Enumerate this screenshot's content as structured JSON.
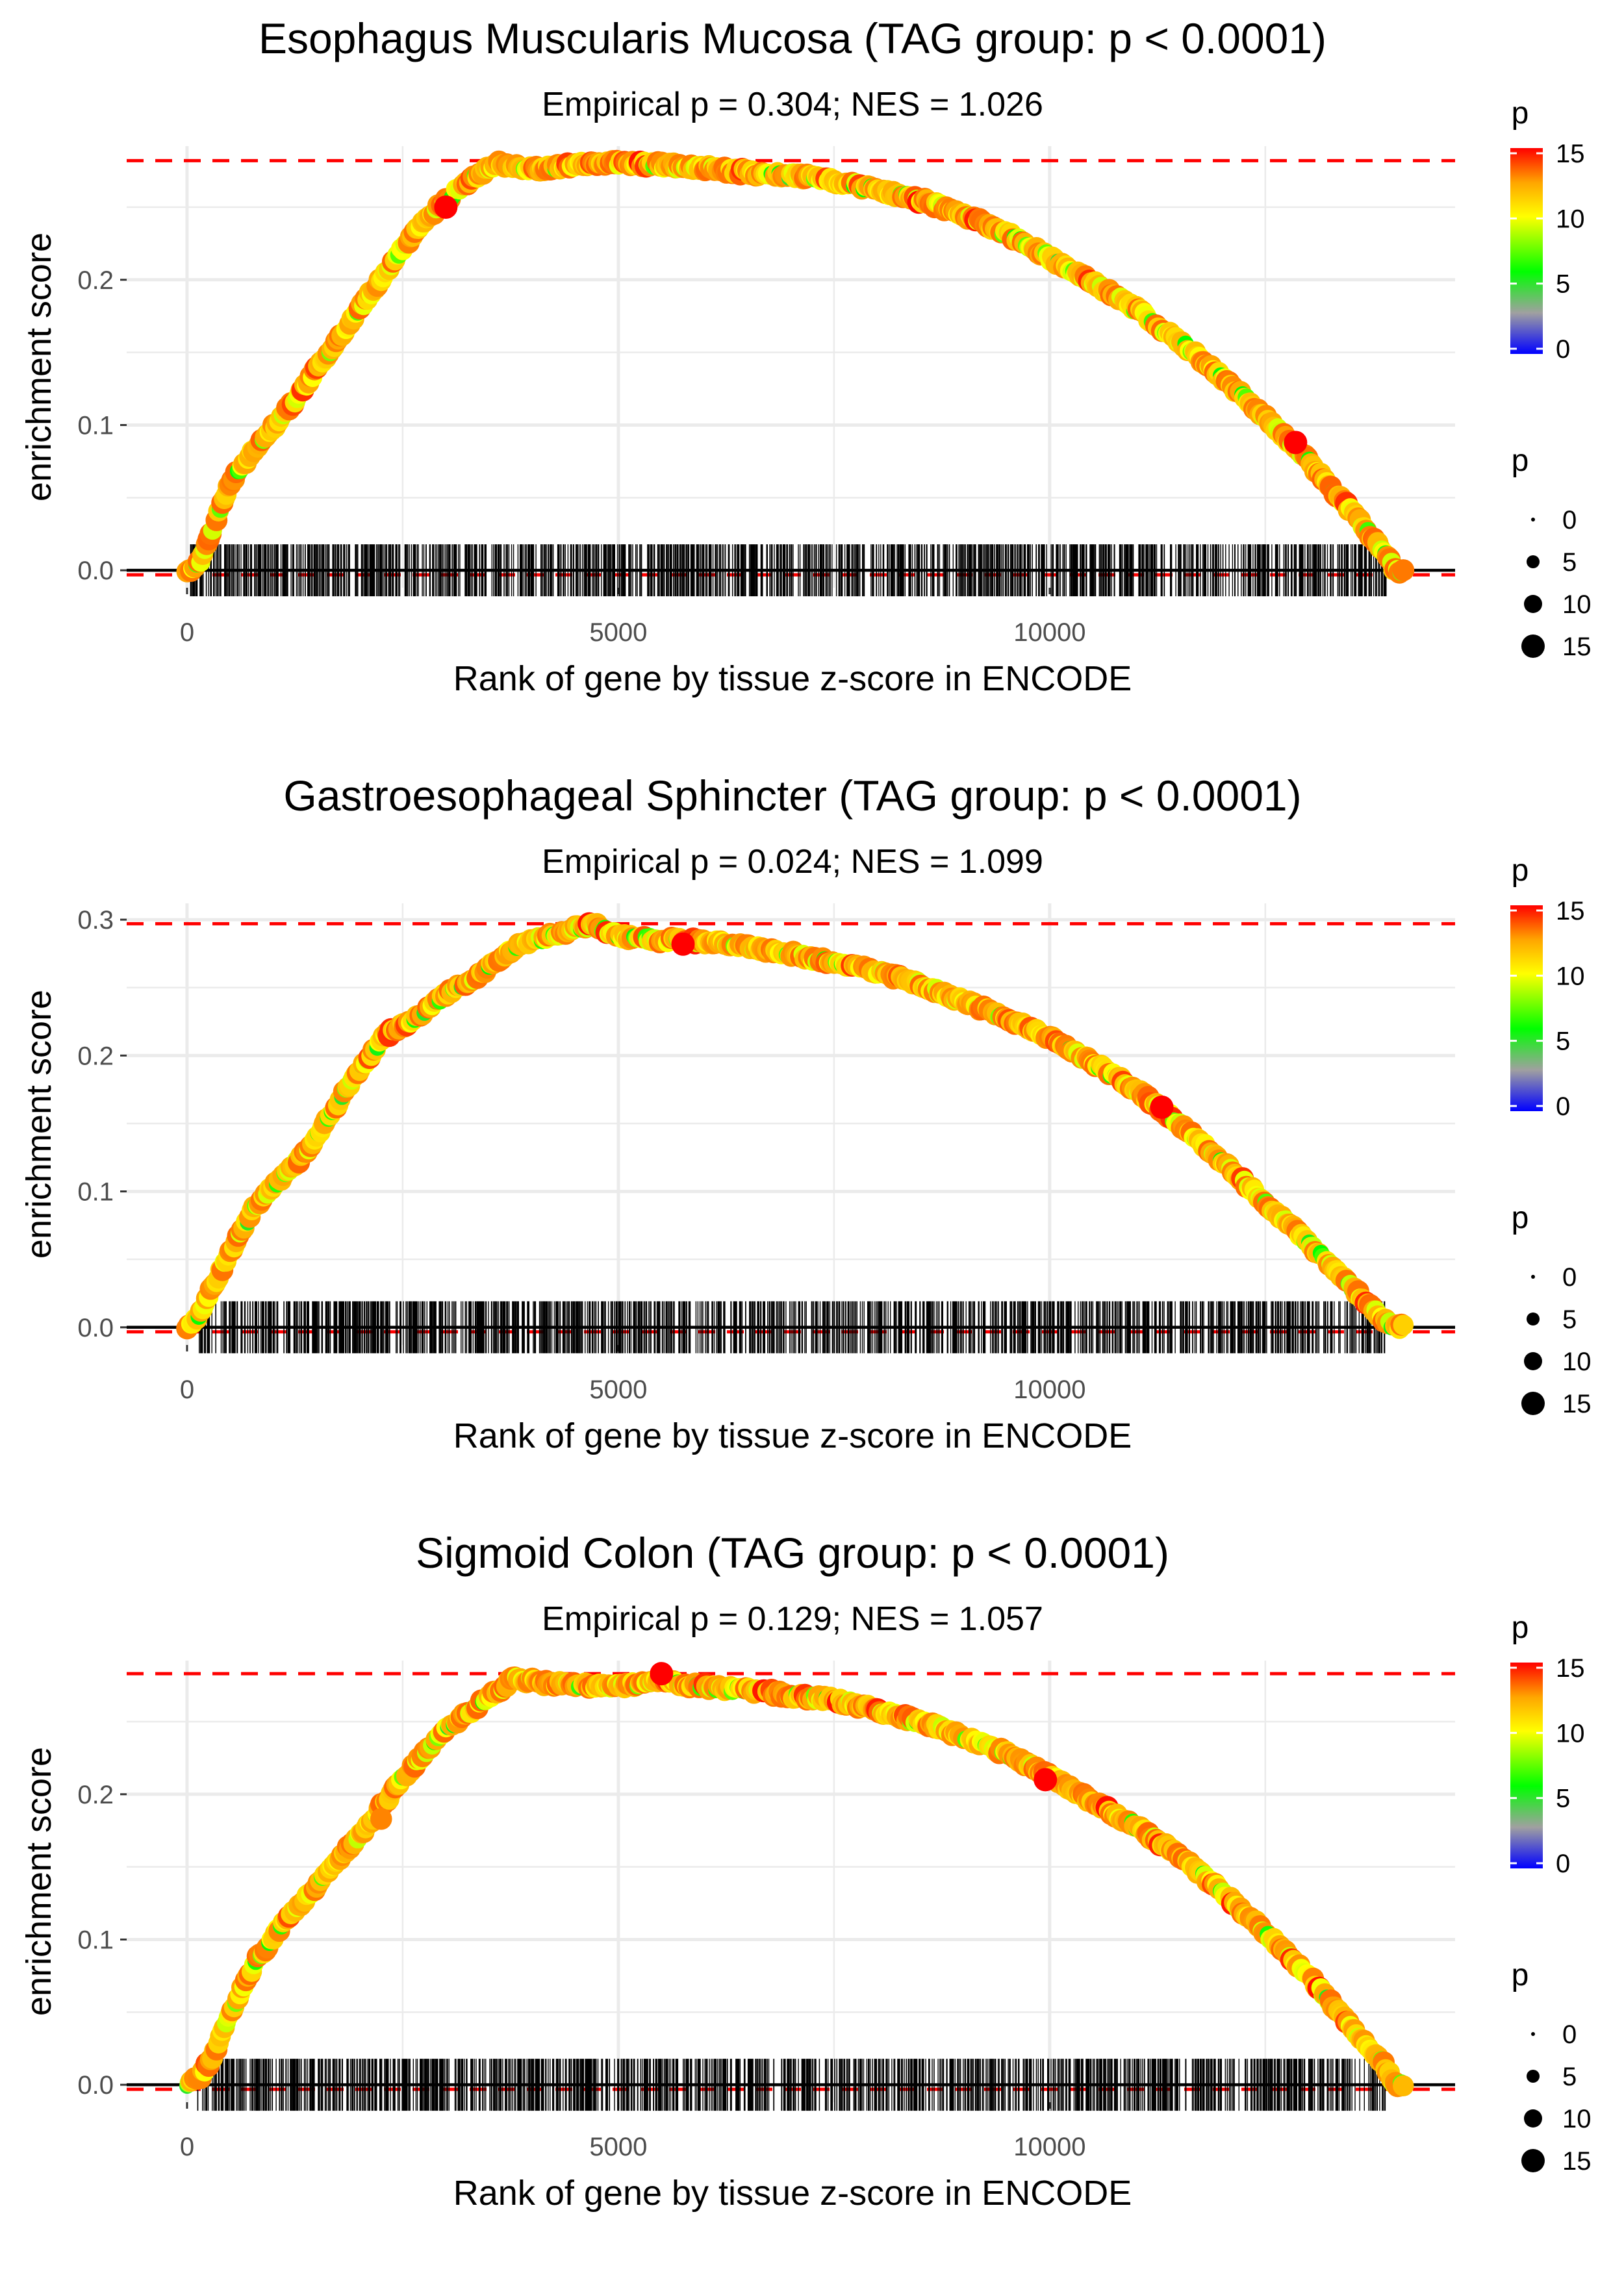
{
  "chart_data": [
    {
      "type": "line",
      "title": "Esophagus Muscularis Mucosa (TAG group: p < 0.0001)",
      "subtitle": "Empirical p = 0.304; NES = 1.026",
      "xlabel": "Rank of gene by tissue z-score in ENCODE",
      "ylabel": "enrichment score",
      "xlim": [
        -700,
        14700
      ],
      "ylim": [
        -0.012,
        0.292
      ],
      "x_ticks": [
        0,
        5000,
        10000
      ],
      "x_tick_labels": [
        "0",
        "5000",
        "10000"
      ],
      "y_ticks": [
        0.0,
        0.1,
        0.2
      ],
      "y_tick_labels": [
        "0.0",
        "0.1",
        "0.2"
      ],
      "max_es": 0.282,
      "min_es": 0.0,
      "n_genes": 14100,
      "curve_x": [
        0,
        150,
        300,
        500,
        800,
        1100,
        1400,
        1700,
        2000,
        2300,
        2600,
        3000,
        3300,
        3600,
        4000,
        4500,
        5000,
        5500,
        6000,
        6500,
        7000,
        7500,
        8000,
        8500,
        9000,
        9500,
        10000,
        10500,
        11000,
        11500,
        12000,
        12500,
        13000,
        13500,
        13900,
        14000
      ],
      "curve_y": [
        0.0,
        0.005,
        0.03,
        0.06,
        0.085,
        0.105,
        0.13,
        0.155,
        0.18,
        0.205,
        0.23,
        0.255,
        0.27,
        0.28,
        0.276,
        0.279,
        0.281,
        0.279,
        0.277,
        0.274,
        0.272,
        0.268,
        0.262,
        0.255,
        0.245,
        0.232,
        0.215,
        0.198,
        0.18,
        0.158,
        0.133,
        0.105,
        0.075,
        0.04,
        0.012,
        0.0
      ],
      "highlights": [
        {
          "x": 3000,
          "y": 0.25,
          "p": 15
        },
        {
          "x": 12850,
          "y": 0.088,
          "p": 15
        }
      ],
      "color_legend": {
        "title": "p",
        "ticks": [
          "15",
          "10",
          "5",
          "0"
        ],
        "colors": [
          "#ff0000",
          "#ffff00",
          "#00ff00",
          "#0000ff"
        ]
      },
      "size_legend": {
        "title": "p",
        "labels": [
          "0",
          "5",
          "10",
          "15"
        ]
      }
    },
    {
      "type": "line",
      "title": "Gastroesophageal Sphincter (TAG group: p < 0.0001)",
      "subtitle": "Empirical p = 0.024; NES = 1.099",
      "xlabel": "Rank of gene by tissue z-score in ENCODE",
      "ylabel": "enrichment score",
      "xlim": [
        -700,
        14700
      ],
      "ylim": [
        -0.013,
        0.312
      ],
      "x_ticks": [
        0,
        5000,
        10000
      ],
      "x_tick_labels": [
        "0",
        "5000",
        "10000"
      ],
      "y_ticks": [
        0.0,
        0.1,
        0.2,
        0.3
      ],
      "y_tick_labels": [
        "0.0",
        "0.1",
        "0.2",
        "0.3"
      ],
      "max_es": 0.297,
      "min_es": 0.0,
      "n_genes": 14100,
      "curve_x": [
        0,
        150,
        300,
        500,
        800,
        1100,
        1400,
        1700,
        2000,
        2300,
        2600,
        3000,
        3400,
        3800,
        4200,
        4700,
        5000,
        5500,
        6000,
        6500,
        7000,
        7500,
        8000,
        8500,
        9000,
        9500,
        10000,
        10500,
        11000,
        11500,
        12000,
        12500,
        13000,
        13500,
        13800,
        14000
      ],
      "curve_y": [
        0.0,
        0.01,
        0.03,
        0.055,
        0.09,
        0.11,
        0.13,
        0.16,
        0.19,
        0.215,
        0.225,
        0.245,
        0.26,
        0.28,
        0.288,
        0.297,
        0.288,
        0.285,
        0.284,
        0.28,
        0.275,
        0.268,
        0.262,
        0.252,
        0.24,
        0.228,
        0.213,
        0.195,
        0.175,
        0.15,
        0.122,
        0.092,
        0.062,
        0.03,
        0.01,
        0.0
      ],
      "highlights": [
        {
          "x": 5750,
          "y": 0.282,
          "p": 15
        },
        {
          "x": 11300,
          "y": 0.162,
          "p": 15
        }
      ],
      "color_legend": {
        "title": "p",
        "ticks": [
          "15",
          "10",
          "5",
          "0"
        ],
        "colors": [
          "#ff0000",
          "#ffff00",
          "#00ff00",
          "#0000ff"
        ]
      },
      "size_legend": {
        "title": "p",
        "labels": [
          "0",
          "5",
          "10",
          "15"
        ]
      }
    },
    {
      "type": "line",
      "title": "Sigmoid Colon (TAG group: p < 0.0001)",
      "subtitle": "Empirical p = 0.129; NES = 1.057",
      "xlabel": "Rank of gene by tissue z-score in ENCODE",
      "ylabel": "enrichment score",
      "xlim": [
        -700,
        14700
      ],
      "ylim": [
        -0.012,
        0.292
      ],
      "x_ticks": [
        0,
        5000,
        10000
      ],
      "x_tick_labels": [
        "0",
        "5000",
        "10000"
      ],
      "y_ticks": [
        0.0,
        0.1,
        0.2
      ],
      "y_tick_labels": [
        "0.0",
        "0.1",
        "0.2"
      ],
      "max_es": 0.283,
      "min_es": 0.0,
      "n_genes": 14100,
      "curve_x": [
        0,
        150,
        300,
        500,
        800,
        1100,
        1400,
        1700,
        2000,
        2300,
        2600,
        3000,
        3400,
        3800,
        4200,
        4700,
        5000,
        5500,
        6000,
        6500,
        7000,
        7500,
        8000,
        8500,
        9000,
        9500,
        10000,
        10500,
        11000,
        11500,
        12000,
        12500,
        13000,
        13500,
        13900,
        14000
      ],
      "curve_y": [
        0.0,
        0.005,
        0.02,
        0.05,
        0.085,
        0.11,
        0.13,
        0.15,
        0.172,
        0.195,
        0.218,
        0.245,
        0.262,
        0.28,
        0.276,
        0.275,
        0.274,
        0.278,
        0.274,
        0.272,
        0.268,
        0.265,
        0.258,
        0.25,
        0.24,
        0.228,
        0.212,
        0.195,
        0.178,
        0.158,
        0.133,
        0.105,
        0.075,
        0.04,
        0.012,
        0.0
      ],
      "highlights": [
        {
          "x": 5500,
          "y": 0.283,
          "p": 15
        },
        {
          "x": 9950,
          "y": 0.21,
          "p": 15
        },
        {
          "x": 2250,
          "y": 0.183,
          "p": 13
        }
      ],
      "color_legend": {
        "title": "p",
        "ticks": [
          "15",
          "10",
          "5",
          "0"
        ],
        "colors": [
          "#ff0000",
          "#ffff00",
          "#00ff00",
          "#0000ff"
        ]
      },
      "size_legend": {
        "title": "p",
        "labels": [
          "0",
          "5",
          "10",
          "15"
        ]
      }
    }
  ]
}
